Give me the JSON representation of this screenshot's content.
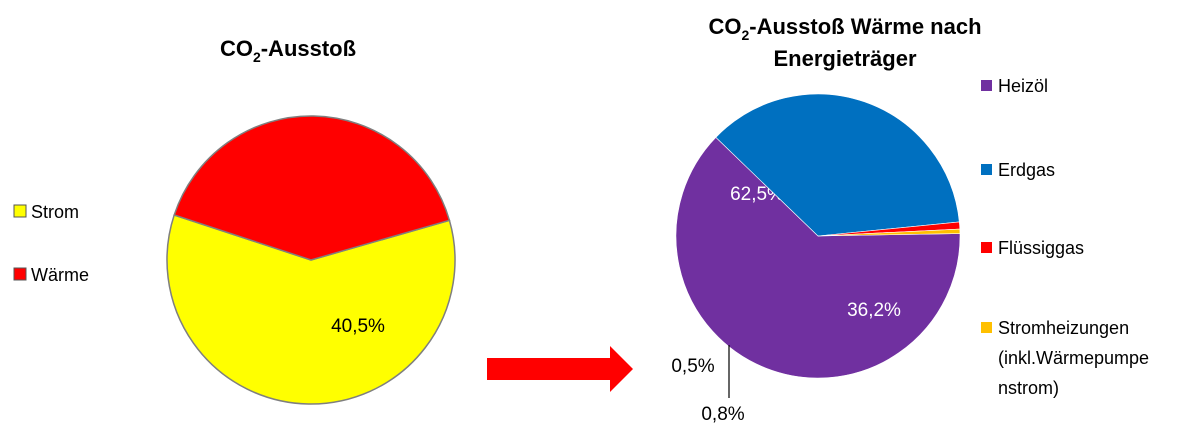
{
  "chart_data": [
    {
      "type": "pie",
      "title": {
        "main": "CO",
        "sub": "2",
        "rest": "-Ausstoß"
      },
      "slices": [
        {
          "name": "Strom",
          "value": 59.5,
          "label": "59,5%",
          "color": "#FFFF00"
        },
        {
          "name": "Wärme",
          "value": 40.5,
          "label": "40,5%",
          "color": "#FF0000"
        }
      ],
      "legend_position": "left"
    },
    {
      "type": "pie",
      "title": {
        "main": "CO",
        "sub": "2",
        "rest": "-Ausstoß Wärme nach",
        "line2": "Energieträger"
      },
      "slices": [
        {
          "name": "Heizöl",
          "value": 62.5,
          "label": "62,5%",
          "color": "#7030A0"
        },
        {
          "name": "Erdgas",
          "value": 36.2,
          "label": "36,2%",
          "color": "#0070C0"
        },
        {
          "name": "Flüssiggas",
          "value": 0.8,
          "label": "0,8%",
          "color": "#FF0000"
        },
        {
          "name": "Stromheizungen (inkl.Wärmepumpenstrom)",
          "legend_lines": [
            "Stromheizungen",
            "(inkl.Wärmepumpe",
            "nstrom)"
          ],
          "value": 0.5,
          "label": "0,5%",
          "color": "#FFC000"
        }
      ],
      "legend_position": "right"
    }
  ],
  "colors": {
    "arrow": "#FF0000",
    "slice_border": "#7F7F7F"
  }
}
